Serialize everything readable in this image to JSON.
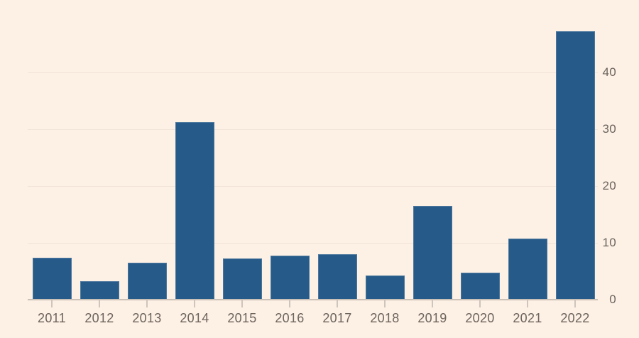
{
  "chart_data": {
    "type": "bar",
    "title": "",
    "xlabel": "",
    "ylabel": "",
    "categories": [
      "2011",
      "2012",
      "2013",
      "2014",
      "2015",
      "2016",
      "2017",
      "2018",
      "2019",
      "2020",
      "2021",
      "2022"
    ],
    "values": [
      7.4,
      3.3,
      6.5,
      31.3,
      7.2,
      7.8,
      8,
      4.3,
      16.5,
      4.8,
      10.8,
      47.2
    ],
    "ylim": [
      0,
      48
    ],
    "yticks": [
      0,
      10,
      20,
      30,
      40
    ],
    "ytick_side": "right",
    "grid": true,
    "legend": false,
    "colors": {
      "bar": "#265b89",
      "background": "#fdf0e4",
      "gridline": "#f1e3d7",
      "axis_line": "#cac1b8",
      "tick": "#cfc5bc",
      "label": "#6d655e"
    }
  }
}
